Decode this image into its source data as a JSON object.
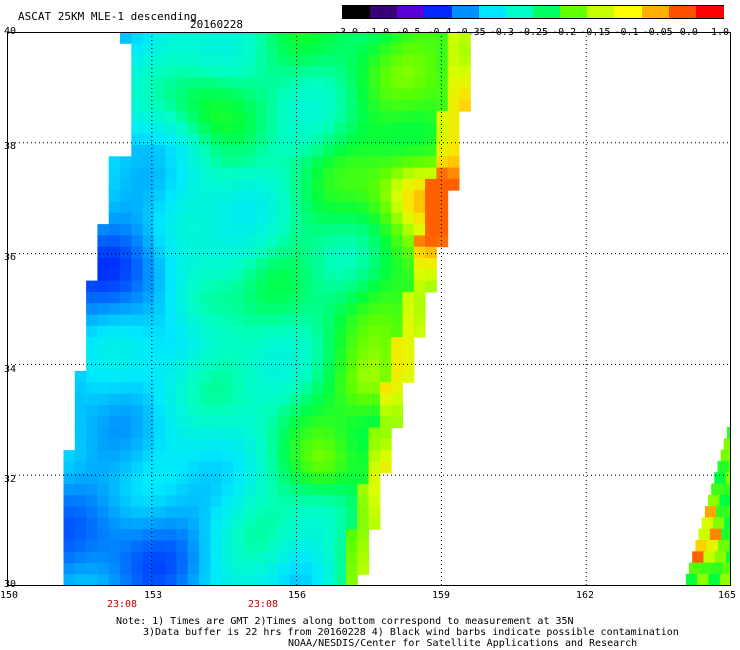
{
  "header": {
    "title": "ASCAT 25KM MLE-1 descending",
    "date": "20160228"
  },
  "colorbar": {
    "ticks": [
      "-3.0",
      "-1.0",
      "-0.5",
      "-0.4",
      "-0.35",
      "-0.3",
      "-0.25",
      "-0.2",
      "-0.15",
      "-0.1",
      "-0.05",
      "0.0",
      "1.0"
    ],
    "colors": [
      "#000000",
      "#3a0078",
      "#5a00d8",
      "#0028ff",
      "#0090ff",
      "#00e8ff",
      "#00ffc8",
      "#00ff60",
      "#60ff00",
      "#c8ff00",
      "#ffff00",
      "#ffb000",
      "#ff5000",
      "#ff0000"
    ]
  },
  "axes": {
    "lat_labels": [
      "40",
      "38",
      "36",
      "34",
      "32",
      "30"
    ],
    "lon_labels": [
      "150",
      "153",
      "156",
      "159",
      "162",
      "165"
    ],
    "lat_range": [
      30,
      40
    ],
    "lon_range": [
      150,
      165
    ]
  },
  "pass_times": [
    "23:08",
    "23:08"
  ],
  "footer": {
    "note_line1": "Note: 1) Times are GMT 2)Times along bottom correspond to measurement at 35N",
    "note_line2": "3)Data buffer is 22 hrs from 20160228 4) Black wind barbs indicate possible contamination",
    "credit": "NOAA/NESDIS/Center for Satellite Applications and Research"
  }
}
